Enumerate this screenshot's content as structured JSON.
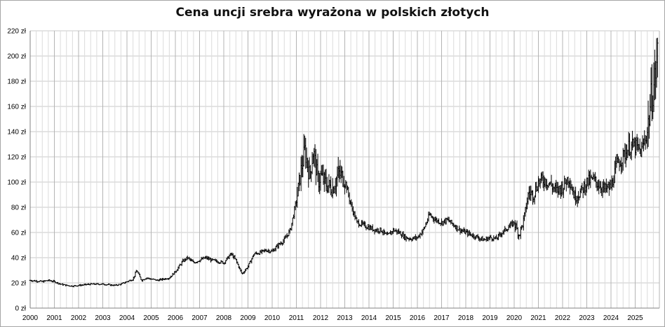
{
  "chart_data": {
    "type": "candlestick",
    "title": "Cena uncji srebra wyrażona w polskich złotych",
    "xlabel": "",
    "ylabel": "",
    "ylim": [
      0,
      220
    ],
    "y_ticks": [
      "0 zł",
      "20 zł",
      "40 zł",
      "60 zł",
      "80 zł",
      "100 zł",
      "120 zł",
      "140 zł",
      "160 zł",
      "180 zł",
      "200 zł",
      "220 zł"
    ],
    "x_ticks": [
      "2000",
      "2001",
      "2002",
      "2003",
      "2004",
      "2005",
      "2006",
      "2007",
      "2008",
      "2009",
      "2010",
      "2011",
      "2012",
      "2013",
      "2014",
      "2015",
      "2016",
      "2017",
      "2018",
      "2019",
      "2020",
      "2021",
      "2022",
      "2023",
      "2024",
      "2025"
    ],
    "grid": true,
    "legend": "none",
    "series": [
      {
        "values": [
          [
            2000.0,
            22
          ],
          [
            2000.25,
            21.5
          ],
          [
            2000.5,
            21
          ],
          [
            2000.75,
            22
          ],
          [
            2001.0,
            21
          ],
          [
            2001.25,
            19
          ],
          [
            2001.5,
            18
          ],
          [
            2001.75,
            17.5
          ],
          [
            2002.0,
            18
          ],
          [
            2002.25,
            18.5
          ],
          [
            2002.5,
            19
          ],
          [
            2002.75,
            19
          ],
          [
            2003.0,
            19
          ],
          [
            2003.25,
            18.5
          ],
          [
            2003.5,
            18
          ],
          [
            2003.75,
            19
          ],
          [
            2004.0,
            21
          ],
          [
            2004.25,
            23
          ],
          [
            2004.4,
            30
          ],
          [
            2004.6,
            22
          ],
          [
            2004.8,
            24
          ],
          [
            2005.0,
            23
          ],
          [
            2005.25,
            22
          ],
          [
            2005.5,
            23
          ],
          [
            2005.75,
            24
          ],
          [
            2006.0,
            29
          ],
          [
            2006.3,
            37
          ],
          [
            2006.5,
            40
          ],
          [
            2006.75,
            36
          ],
          [
            2007.0,
            38
          ],
          [
            2007.25,
            40
          ],
          [
            2007.5,
            38
          ],
          [
            2007.75,
            37
          ],
          [
            2008.0,
            36
          ],
          [
            2008.3,
            43
          ],
          [
            2008.5,
            38
          ],
          [
            2008.75,
            27
          ],
          [
            2009.0,
            33
          ],
          [
            2009.25,
            43
          ],
          [
            2009.5,
            44
          ],
          [
            2009.75,
            46
          ],
          [
            2010.0,
            45
          ],
          [
            2010.25,
            50
          ],
          [
            2010.5,
            54
          ],
          [
            2010.75,
            62
          ],
          [
            2011.0,
            85
          ],
          [
            2011.2,
            110
          ],
          [
            2011.35,
            125
          ],
          [
            2011.55,
            105
          ],
          [
            2011.7,
            125
          ],
          [
            2011.9,
            100
          ],
          [
            2012.0,
            105
          ],
          [
            2012.25,
            98
          ],
          [
            2012.5,
            95
          ],
          [
            2012.75,
            107
          ],
          [
            2013.0,
            102
          ],
          [
            2013.25,
            82
          ],
          [
            2013.5,
            68
          ],
          [
            2013.75,
            66
          ],
          [
            2014.0,
            64
          ],
          [
            2014.25,
            62
          ],
          [
            2014.5,
            62
          ],
          [
            2014.75,
            57
          ],
          [
            2015.0,
            62
          ],
          [
            2015.25,
            60
          ],
          [
            2015.5,
            56
          ],
          [
            2015.75,
            55
          ],
          [
            2016.0,
            56
          ],
          [
            2016.25,
            62
          ],
          [
            2016.5,
            74
          ],
          [
            2016.75,
            70
          ],
          [
            2017.0,
            68
          ],
          [
            2017.25,
            70
          ],
          [
            2017.5,
            66
          ],
          [
            2017.75,
            62
          ],
          [
            2018.0,
            60
          ],
          [
            2018.25,
            58
          ],
          [
            2018.5,
            56
          ],
          [
            2018.75,
            54
          ],
          [
            2019.0,
            56
          ],
          [
            2019.25,
            55
          ],
          [
            2019.5,
            60
          ],
          [
            2019.75,
            64
          ],
          [
            2020.0,
            68
          ],
          [
            2020.2,
            58
          ],
          [
            2020.4,
            70
          ],
          [
            2020.6,
            92
          ],
          [
            2020.8,
            90
          ],
          [
            2021.0,
            100
          ],
          [
            2021.25,
            102
          ],
          [
            2021.5,
            98
          ],
          [
            2021.75,
            93
          ],
          [
            2022.0,
            96
          ],
          [
            2022.25,
            104
          ],
          [
            2022.5,
            88
          ],
          [
            2022.75,
            92
          ],
          [
            2023.0,
            100
          ],
          [
            2023.25,
            102
          ],
          [
            2023.5,
            98
          ],
          [
            2023.75,
            94
          ],
          [
            2024.0,
            96
          ],
          [
            2024.25,
            114
          ],
          [
            2024.5,
            120
          ],
          [
            2024.75,
            128
          ],
          [
            2025.0,
            128
          ],
          [
            2025.25,
            124
          ],
          [
            2025.5,
            140
          ],
          [
            2025.65,
            165
          ],
          [
            2025.8,
            180
          ],
          [
            2025.95,
            205
          ]
        ]
      }
    ]
  }
}
